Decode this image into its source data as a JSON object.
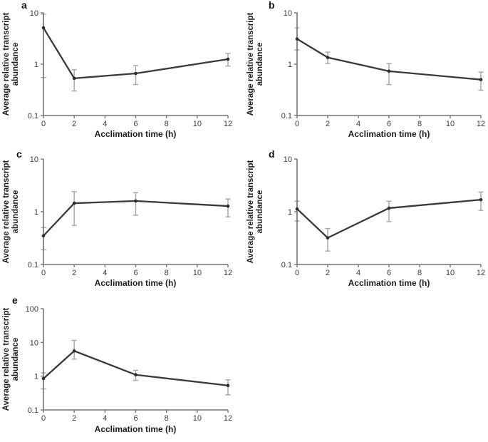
{
  "figure": {
    "xlabel": "Acclimation time (h)",
    "ylabel_line1": "Average relative transcript",
    "ylabel_line2": "abundance",
    "colors": {
      "background": "#ffffff",
      "line": "#3a3a3a",
      "marker": "#2d2d2d",
      "error_bar": "#a5a5a5",
      "axis": "#757575",
      "tick_text": "#3c3c3c",
      "label_text": "#1e1e1e"
    }
  },
  "chart_data": [
    {
      "panel": "a",
      "type": "line",
      "yscale": "log",
      "grid": false,
      "legend": null,
      "x": [
        0,
        2,
        6,
        12
      ],
      "y": [
        5.1,
        0.53,
        0.66,
        1.25
      ],
      "err_low": [
        0.55,
        0.3,
        0.4,
        0.92
      ],
      "err_high": [
        9.4,
        0.78,
        0.94,
        1.62
      ],
      "xlabel": "Acclimation time (h)",
      "ylabel": "Average relative transcript abundance",
      "xlim": [
        0,
        12
      ],
      "ylim": [
        0.1,
        10
      ],
      "xticks": [
        0,
        2,
        4,
        6,
        8,
        10,
        12
      ],
      "yticks": [
        0.1,
        1,
        10
      ]
    },
    {
      "panel": "b",
      "type": "line",
      "yscale": "log",
      "grid": false,
      "legend": null,
      "x": [
        0,
        2,
        6,
        12
      ],
      "y": [
        3.1,
        1.35,
        0.73,
        0.5
      ],
      "err_low": [
        1.9,
        1.03,
        0.4,
        0.31
      ],
      "err_high": [
        5.1,
        1.72,
        1.03,
        0.7
      ],
      "xlabel": "Acclimation time (h)",
      "ylabel": "Average relative transcript abundance",
      "xlim": [
        0,
        12
      ],
      "ylim": [
        0.1,
        10
      ],
      "xticks": [
        0,
        2,
        4,
        6,
        8,
        10,
        12
      ],
      "yticks": [
        0.1,
        1,
        10
      ]
    },
    {
      "panel": "c",
      "type": "line",
      "yscale": "log",
      "grid": false,
      "legend": null,
      "x": [
        0,
        2,
        6,
        12
      ],
      "y": [
        0.35,
        1.45,
        1.6,
        1.28
      ],
      "err_low": [
        0.19,
        0.55,
        0.86,
        0.8
      ],
      "err_high": [
        0.5,
        2.4,
        2.3,
        1.75
      ],
      "xlabel": "Acclimation time (h)",
      "ylabel": "Average relative transcript abundance",
      "xlim": [
        0,
        12
      ],
      "ylim": [
        0.1,
        10
      ],
      "xticks": [
        0,
        2,
        4,
        6,
        8,
        10,
        12
      ],
      "yticks": [
        0.1,
        1,
        10
      ]
    },
    {
      "panel": "d",
      "type": "line",
      "yscale": "log",
      "grid": false,
      "legend": null,
      "x": [
        0,
        2,
        6,
        12
      ],
      "y": [
        1.13,
        0.32,
        1.17,
        1.69
      ],
      "err_low": [
        0.67,
        0.18,
        0.65,
        1.06
      ],
      "err_high": [
        1.58,
        0.48,
        1.58,
        2.36
      ],
      "xlabel": "Acclimation time (h)",
      "ylabel": "Average relative transcript abundance",
      "xlim": [
        0,
        12
      ],
      "ylim": [
        0.1,
        10
      ],
      "xticks": [
        0,
        2,
        4,
        6,
        8,
        10,
        12
      ],
      "yticks": [
        0.1,
        1,
        10
      ]
    },
    {
      "panel": "e",
      "type": "line",
      "yscale": "log",
      "grid": false,
      "legend": null,
      "x": [
        0,
        2,
        6,
        12
      ],
      "y": [
        0.85,
        5.6,
        1.1,
        0.53
      ],
      "err_low": [
        0.42,
        3.2,
        0.75,
        0.28
      ],
      "err_high": [
        1.25,
        11.5,
        1.5,
        0.78
      ],
      "xlabel": "Acclimation time (h)",
      "ylabel": "Average relative transcript abundance",
      "xlim": [
        0,
        12
      ],
      "ylim": [
        0.1,
        100
      ],
      "xticks": [
        0,
        2,
        4,
        6,
        8,
        10,
        12
      ],
      "yticks": [
        0.1,
        1,
        10,
        100
      ]
    }
  ]
}
